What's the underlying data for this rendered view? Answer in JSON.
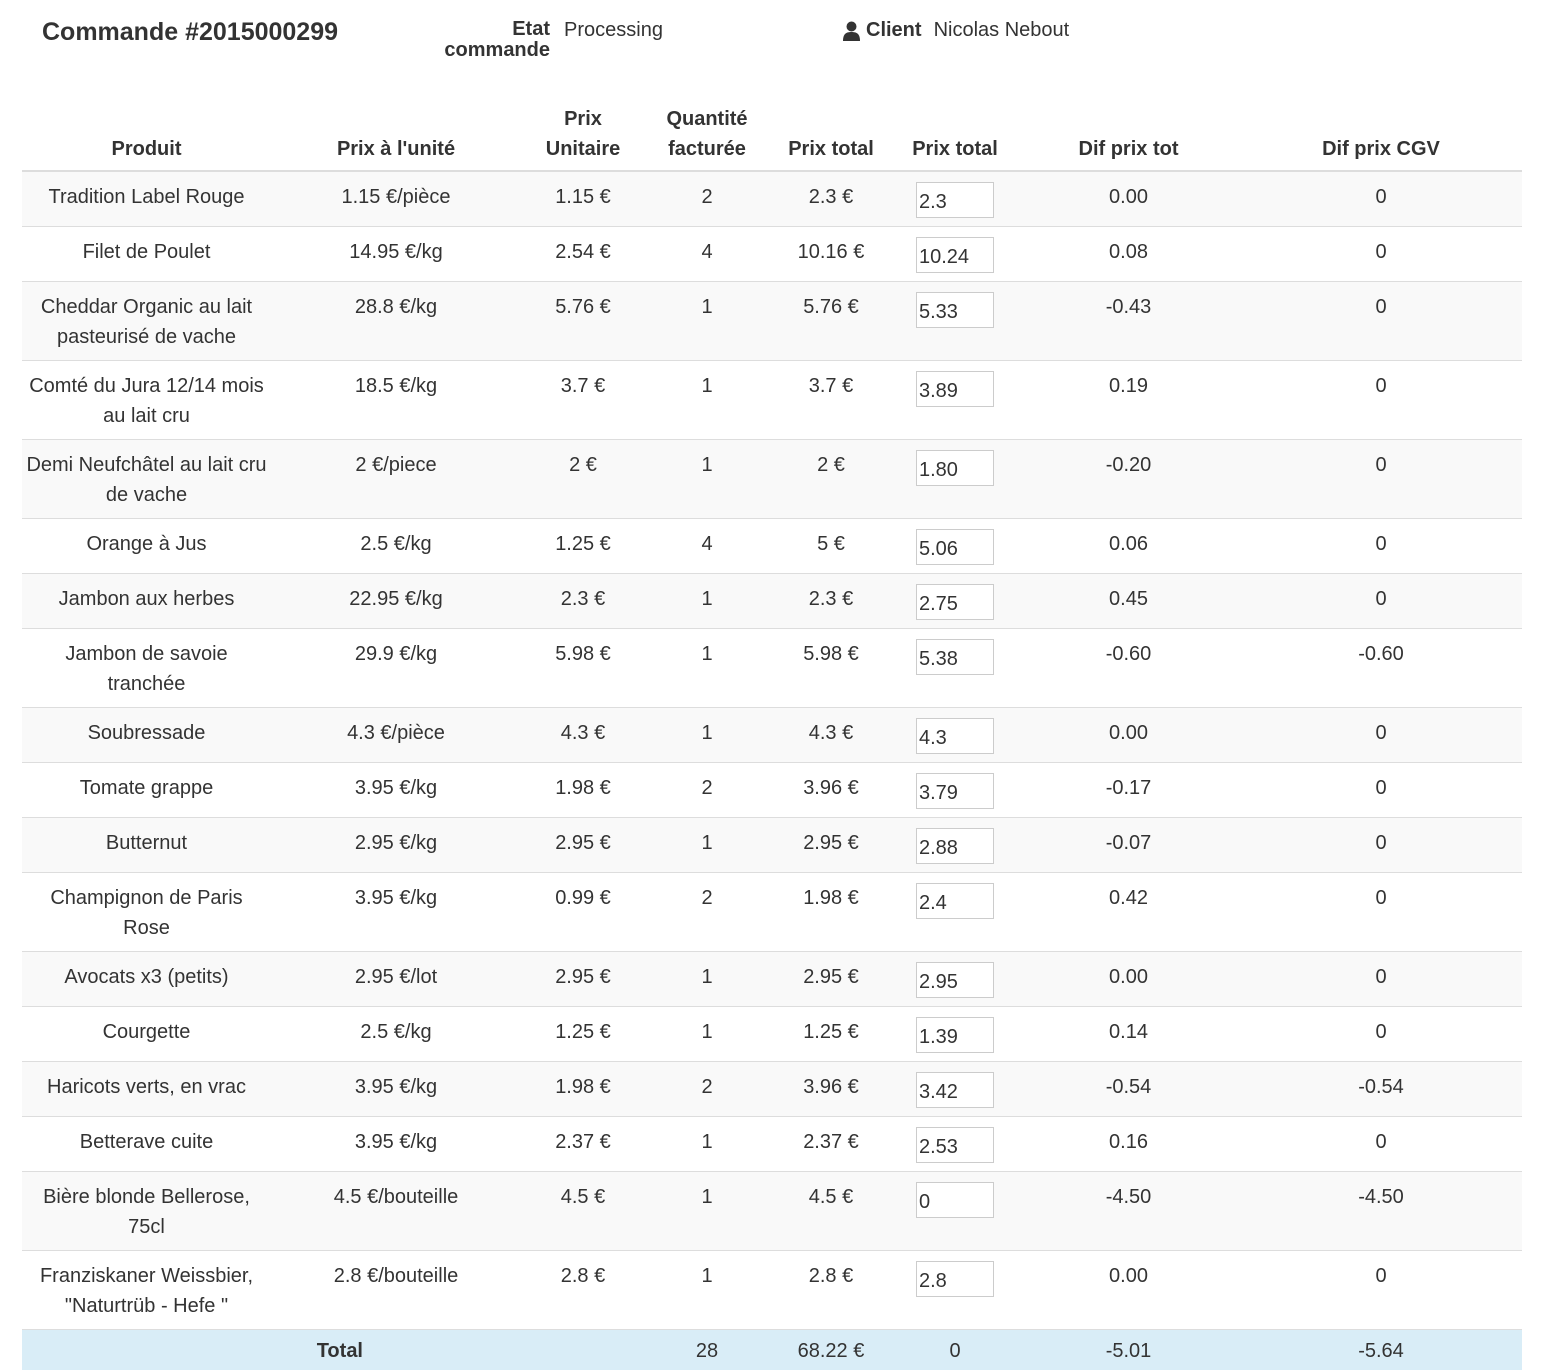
{
  "header": {
    "title": "Commande #2015000299",
    "state_label": "Etat commande",
    "state_value": "Processing",
    "client_label": "Client",
    "client_value": "Nicolas Nebout"
  },
  "icons": {
    "client": "user-icon"
  },
  "colors": {
    "product_link": "#256b25",
    "total_row_bg": "#d9edf7",
    "row_stripe": "#f9f9f9"
  },
  "table": {
    "columns": [
      "Produit",
      "Prix à l'unité",
      "Prix Unitaire",
      "Quantité facturée",
      "Prix total",
      "Prix total",
      "Dif prix tot",
      "Dif prix CGV"
    ],
    "rows": [
      {
        "product": "Tradition Label Rouge",
        "unit_price": "1.15 €/pièce",
        "price_unit": "1.15 €",
        "qty": "2",
        "total": "2.3 €",
        "input": "2.3",
        "dif_tot": "0.00",
        "dif_cgv": "0"
      },
      {
        "product": "Filet de Poulet",
        "unit_price": "14.95 €/kg",
        "price_unit": "2.54 €",
        "qty": "4",
        "total": "10.16 €",
        "input": "10.24",
        "dif_tot": "0.08",
        "dif_cgv": "0"
      },
      {
        "product": "Cheddar Organic au lait pasteurisé de vache",
        "unit_price": "28.8 €/kg",
        "price_unit": "5.76 €",
        "qty": "1",
        "total": "5.76 €",
        "input": "5.33",
        "dif_tot": "-0.43",
        "dif_cgv": "0"
      },
      {
        "product": "Comté du Jura 12/14 mois au lait cru",
        "unit_price": "18.5 €/kg",
        "price_unit": "3.7 €",
        "qty": "1",
        "total": "3.7 €",
        "input": "3.89",
        "dif_tot": "0.19",
        "dif_cgv": "0"
      },
      {
        "product": "Demi Neufchâtel au lait cru de vache",
        "unit_price": "2 €/piece",
        "price_unit": "2 €",
        "qty": "1",
        "total": "2 €",
        "input": "1.80",
        "dif_tot": "-0.20",
        "dif_cgv": "0"
      },
      {
        "product": "Orange à Jus",
        "unit_price": "2.5 €/kg",
        "price_unit": "1.25 €",
        "qty": "4",
        "total": "5 €",
        "input": "5.06",
        "dif_tot": "0.06",
        "dif_cgv": "0"
      },
      {
        "product": "Jambon aux herbes",
        "unit_price": "22.95 €/kg",
        "price_unit": "2.3 €",
        "qty": "1",
        "total": "2.3 €",
        "input": "2.75",
        "dif_tot": "0.45",
        "dif_cgv": "0"
      },
      {
        "product": "Jambon de savoie tranchée",
        "unit_price": "29.9 €/kg",
        "price_unit": "5.98 €",
        "qty": "1",
        "total": "5.98 €",
        "input": "5.38",
        "dif_tot": "-0.60",
        "dif_cgv": "-0.60"
      },
      {
        "product": "Soubressade",
        "unit_price": "4.3 €/pièce",
        "price_unit": "4.3 €",
        "qty": "1",
        "total": "4.3 €",
        "input": "4.3",
        "dif_tot": "0.00",
        "dif_cgv": "0"
      },
      {
        "product": "Tomate grappe",
        "unit_price": "3.95 €/kg",
        "price_unit": "1.98 €",
        "qty": "2",
        "total": "3.96 €",
        "input": "3.79",
        "dif_tot": "-0.17",
        "dif_cgv": "0"
      },
      {
        "product": "Butternut",
        "unit_price": "2.95 €/kg",
        "price_unit": "2.95 €",
        "qty": "1",
        "total": "2.95 €",
        "input": "2.88",
        "dif_tot": "-0.07",
        "dif_cgv": "0"
      },
      {
        "product": "Champignon de Paris Rose",
        "unit_price": "3.95 €/kg",
        "price_unit": "0.99 €",
        "qty": "2",
        "total": "1.98 €",
        "input": "2.4",
        "dif_tot": "0.42",
        "dif_cgv": "0"
      },
      {
        "product": "Avocats x3 (petits)",
        "unit_price": "2.95 €/lot",
        "price_unit": "2.95 €",
        "qty": "1",
        "total": "2.95 €",
        "input": "2.95",
        "dif_tot": "0.00",
        "dif_cgv": "0"
      },
      {
        "product": "Courgette",
        "unit_price": "2.5 €/kg",
        "price_unit": "1.25 €",
        "qty": "1",
        "total": "1.25 €",
        "input": "1.39",
        "dif_tot": "0.14",
        "dif_cgv": "0"
      },
      {
        "product": "Haricots verts, en vrac",
        "unit_price": "3.95 €/kg",
        "price_unit": "1.98 €",
        "qty": "2",
        "total": "3.96 €",
        "input": "3.42",
        "dif_tot": "-0.54",
        "dif_cgv": "-0.54"
      },
      {
        "product": "Betterave cuite",
        "unit_price": "3.95 €/kg",
        "price_unit": "2.37 €",
        "qty": "1",
        "total": "2.37 €",
        "input": "2.53",
        "dif_tot": "0.16",
        "dif_cgv": "0"
      },
      {
        "product": "Bière blonde Bellerose, 75cl",
        "unit_price": "4.5 €/bouteille",
        "price_unit": "4.5 €",
        "qty": "1",
        "total": "4.5 €",
        "input": "0",
        "dif_tot": "-4.50",
        "dif_cgv": "-4.50"
      },
      {
        "product": "Franziskaner Weissbier, \"Naturtrüb - Hefe \"",
        "unit_price": "2.8 €/bouteille",
        "price_unit": "2.8 €",
        "qty": "1",
        "total": "2.8 €",
        "input": "2.8",
        "dif_tot": "0.00",
        "dif_cgv": "0"
      }
    ],
    "total": {
      "label": "Total",
      "qty": "28",
      "total": "68.22 €",
      "input_total": "0",
      "dif_tot": "-5.01",
      "dif_cgv": "-5.64"
    }
  }
}
